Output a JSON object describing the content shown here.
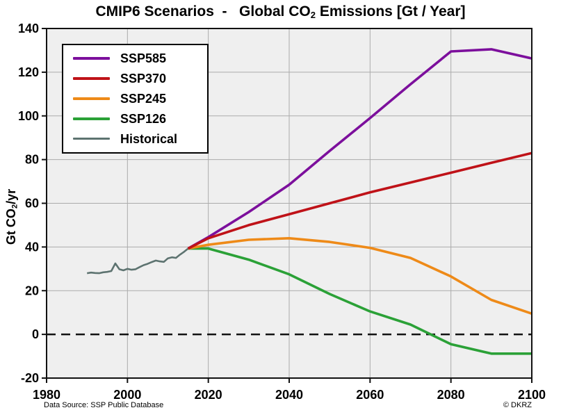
{
  "figure": {
    "title": {
      "prefix": "CMIP6 Scenarios  -   Global CO",
      "sub": "2",
      "suffix": " Emissions [Gt / Year]"
    },
    "y_axis_title": {
      "prefix": "Gt CO",
      "sub": "2",
      "suffix": "/yr"
    },
    "footer_left": "Data Source: SSP Public Database",
    "footer_right": "© DKRZ"
  },
  "colors": {
    "plot_background": "#efefef",
    "grid": "#ababab",
    "frame": "#111111",
    "zero_line": "#111111",
    "ssp585": "#7c0f9c",
    "ssp370": "#bf1218",
    "ssp245": "#ee8a18",
    "ssp126": "#2ba137",
    "historical": "#5d7370"
  },
  "chart_data": {
    "type": "line",
    "title": "CMIP6 Scenarios - Global CO2 Emissions [Gt / Year]",
    "xlabel": "",
    "ylabel": "Gt CO2/yr",
    "xlim": [
      1980,
      2100
    ],
    "ylim": [
      -20,
      140
    ],
    "x_ticks": [
      1980,
      2000,
      2020,
      2040,
      2060,
      2080,
      2100
    ],
    "y_ticks": [
      -20,
      0,
      20,
      40,
      60,
      80,
      100,
      120,
      140
    ],
    "grid": true,
    "zero_line": "dashed",
    "legend_position": "top-left",
    "draw_order": [
      4,
      0,
      3,
      2,
      1
    ],
    "series": [
      {
        "name": "SSP585",
        "color": "#7c0f9c",
        "line_width": 3.6,
        "x": [
          2015,
          2020,
          2030,
          2040,
          2050,
          2060,
          2070,
          2080,
          2090,
          2100
        ],
        "values": [
          39.3,
          44.5,
          56,
          68.5,
          84,
          99,
          114.5,
          129.5,
          130.5,
          126.3
        ]
      },
      {
        "name": "SSP370",
        "color": "#bf1218",
        "line_width": 3.6,
        "x": [
          2015,
          2020,
          2030,
          2040,
          2050,
          2060,
          2070,
          2080,
          2090,
          2100
        ],
        "values": [
          39.3,
          44,
          50,
          55,
          60,
          65,
          69.5,
          74,
          78.5,
          83
        ]
      },
      {
        "name": "SSP245",
        "color": "#ee8a18",
        "line_width": 3.6,
        "x": [
          2015,
          2020,
          2030,
          2040,
          2050,
          2060,
          2070,
          2080,
          2090,
          2100
        ],
        "values": [
          39.3,
          41,
          43.3,
          44,
          42.3,
          39.6,
          35,
          26.5,
          15.8,
          9.5
        ]
      },
      {
        "name": "SSP126",
        "color": "#2ba137",
        "line_width": 3.6,
        "x": [
          2015,
          2020,
          2030,
          2040,
          2050,
          2060,
          2070,
          2080,
          2090,
          2100
        ],
        "values": [
          39.3,
          39.3,
          34.2,
          27.5,
          18.5,
          10.5,
          4.5,
          -4.5,
          -8.8,
          -8.8
        ]
      },
      {
        "name": "Historical",
        "color": "#5d7370",
        "line_width": 2.6,
        "x": [
          1990,
          1991,
          1992,
          1993,
          1994,
          1995,
          1996,
          1997,
          1998,
          1999,
          2000,
          2001,
          2002,
          2003,
          2004,
          2005,
          2006,
          2007,
          2008,
          2009,
          2010,
          2011,
          2012,
          2013,
          2014,
          2015
        ],
        "values": [
          28.0,
          28.3,
          28.1,
          28.0,
          28.4,
          28.6,
          29.0,
          32.5,
          29.8,
          29.3,
          30.0,
          29.6,
          29.8,
          30.8,
          31.7,
          32.3,
          33.1,
          33.8,
          33.4,
          33.2,
          34.8,
          35.3,
          35.0,
          36.5,
          37.8,
          39.3
        ]
      }
    ]
  }
}
